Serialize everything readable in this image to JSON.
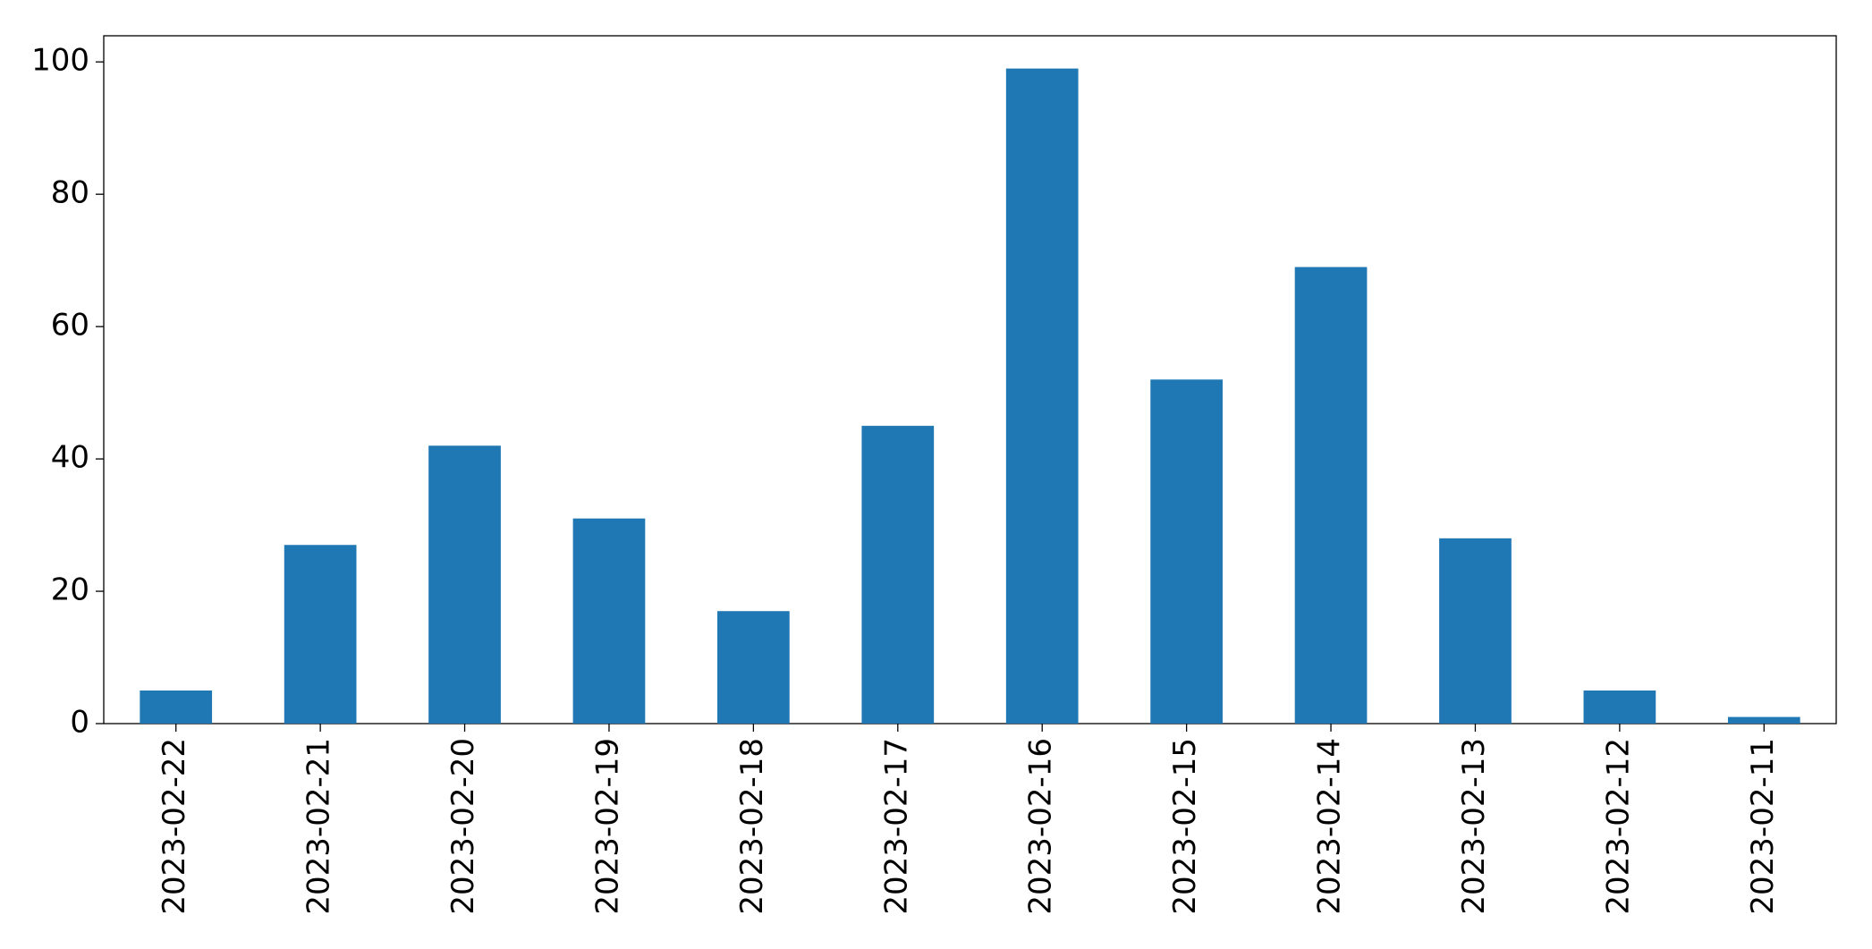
{
  "chart_data": {
    "type": "bar",
    "categories": [
      "2023-02-22",
      "2023-02-21",
      "2023-02-20",
      "2023-02-19",
      "2023-02-18",
      "2023-02-17",
      "2023-02-16",
      "2023-02-15",
      "2023-02-14",
      "2023-02-13",
      "2023-02-12",
      "2023-02-11"
    ],
    "values": [
      5,
      27,
      42,
      31,
      17,
      45,
      99,
      52,
      69,
      28,
      5,
      1
    ],
    "color": "#1f77b4",
    "ylim": [
      0,
      103.95
    ],
    "yticks": [
      0,
      20,
      40,
      60,
      80,
      100
    ],
    "grid": false
  }
}
